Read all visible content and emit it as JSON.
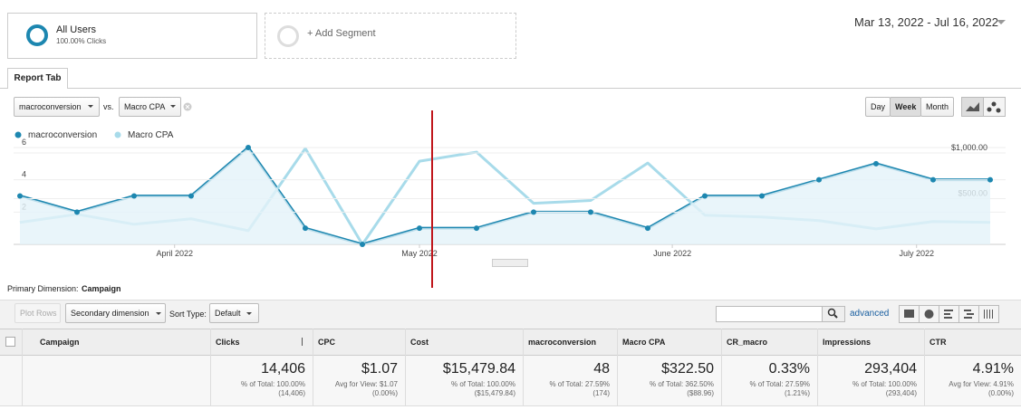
{
  "segment": {
    "name": "All Users",
    "sub": "100.00% Clicks"
  },
  "add_segment": "+ Add Segment",
  "date_range": "Mar 13, 2022 - Jul 16, 2022",
  "tab": "Report Tab",
  "metric_select": [
    "macroconversion",
    "Macro CPA"
  ],
  "vs": "vs.",
  "granularity": [
    "Day",
    "Week",
    "Month"
  ],
  "chart_data": {
    "type": "line",
    "categories": [
      null,
      null,
      null,
      null,
      null,
      null,
      null,
      null,
      null,
      null,
      null,
      null,
      null,
      null,
      null,
      null,
      null,
      null
    ],
    "xticks": [
      {
        "value": 2.71,
        "label": "April 2022"
      },
      {
        "value": 7.0,
        "label": "May 2022"
      },
      {
        "value": 11.43,
        "label": "June 2022"
      },
      {
        "value": 15.71,
        "label": "July 2022"
      }
    ],
    "series": [
      {
        "name": "macroconversion",
        "color": "#1d87b0",
        "values": [
          3,
          2,
          3,
          3,
          6,
          1,
          0,
          1,
          1,
          2,
          2,
          1,
          3,
          3,
          4,
          5,
          4,
          4
        ]
      },
      {
        "name": "Macro CPA",
        "color": "#a8dbea",
        "axis": "y2",
        "values": [
          240,
          330,
          220,
          280,
          150,
          1050,
          0,
          910,
          1010,
          450,
          480,
          890,
          320,
          300,
          260,
          170,
          250,
          240
        ]
      }
    ],
    "ylim": [
      0,
      6
    ],
    "yticks": [
      2,
      4,
      6
    ],
    "y2lim": [
      0,
      1060
    ],
    "y2ticks": [
      {
        "value": 500,
        "label": "$500.00"
      },
      {
        "value": 1000,
        "label": "$1,000.00"
      }
    ],
    "grid": true
  },
  "primary_dimension": {
    "label": "Primary Dimension:",
    "value": "Campaign"
  },
  "toolbar": {
    "plot_rows": "Plot Rows",
    "secondary": "Secondary dimension",
    "sort_label": "Sort Type:",
    "sort": "Default",
    "advanced": "advanced"
  },
  "table": {
    "columns": [
      "Campaign",
      "Clicks",
      "CPC",
      "Cost",
      "macroconversion",
      "Macro CPA",
      "CR_macro",
      "Impressions",
      "CTR"
    ],
    "totals": [
      {
        "main": "14,406",
        "sub": "% of Total: 100.00%",
        "base": "(14,406)"
      },
      {
        "main": "$1.07",
        "sub": "Avg for View: $1.07",
        "base": "(0.00%)"
      },
      {
        "main": "$15,479.84",
        "sub": "% of Total: 100.00%",
        "base": "($15,479.84)"
      },
      {
        "main": "48",
        "sub": "% of Total: 27.59%",
        "base": "(174)"
      },
      {
        "main": "$322.50",
        "sub": "% of Total: 362.50%",
        "base": "($88.96)"
      },
      {
        "main": "0.33%",
        "sub": "% of Total: 27.59%",
        "base": "(1.21%)"
      },
      {
        "main": "293,404",
        "sub": "% of Total: 100.00%",
        "base": "(293,404)"
      },
      {
        "main": "4.91%",
        "sub": "Avg for View: 4.91%",
        "base": "(0.00%)"
      }
    ]
  }
}
